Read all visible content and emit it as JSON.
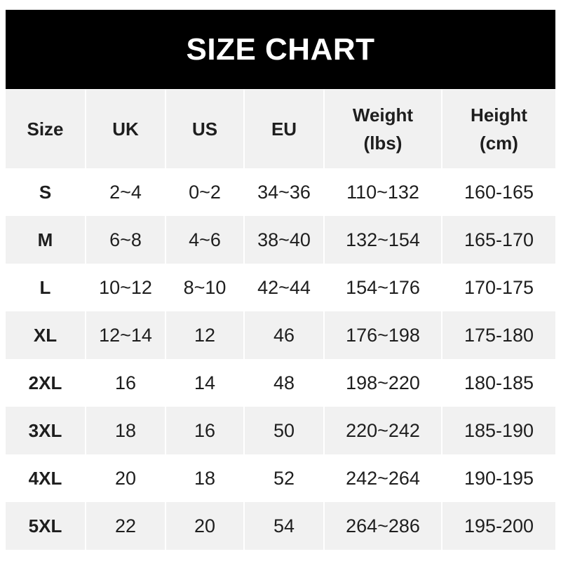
{
  "title": "SIZE CHART",
  "columns": [
    "Size",
    "UK",
    "US",
    "EU",
    "Weight\n(lbs)",
    "Height\n(cm)"
  ],
  "rows": [
    [
      "S",
      "2~4",
      "0~2",
      "34~36",
      "110~132",
      "160-165"
    ],
    [
      "M",
      "6~8",
      "4~6",
      "38~40",
      "132~154",
      "165-170"
    ],
    [
      "L",
      "10~12",
      "8~10",
      "42~44",
      "154~176",
      "170-175"
    ],
    [
      "XL",
      "12~14",
      "12",
      "46",
      "176~198",
      "175-180"
    ],
    [
      "2XL",
      "16",
      "14",
      "48",
      "198~220",
      "180-185"
    ],
    [
      "3XL",
      "18",
      "16",
      "50",
      "220~242",
      "185-190"
    ],
    [
      "4XL",
      "20",
      "18",
      "52",
      "242~264",
      "190-195"
    ],
    [
      "5XL",
      "22",
      "20",
      "54",
      "264~286",
      "195-200"
    ]
  ],
  "colors": {
    "banner": "#000000",
    "stripe": "#f1f1f1",
    "text": "#1e1e1e"
  }
}
